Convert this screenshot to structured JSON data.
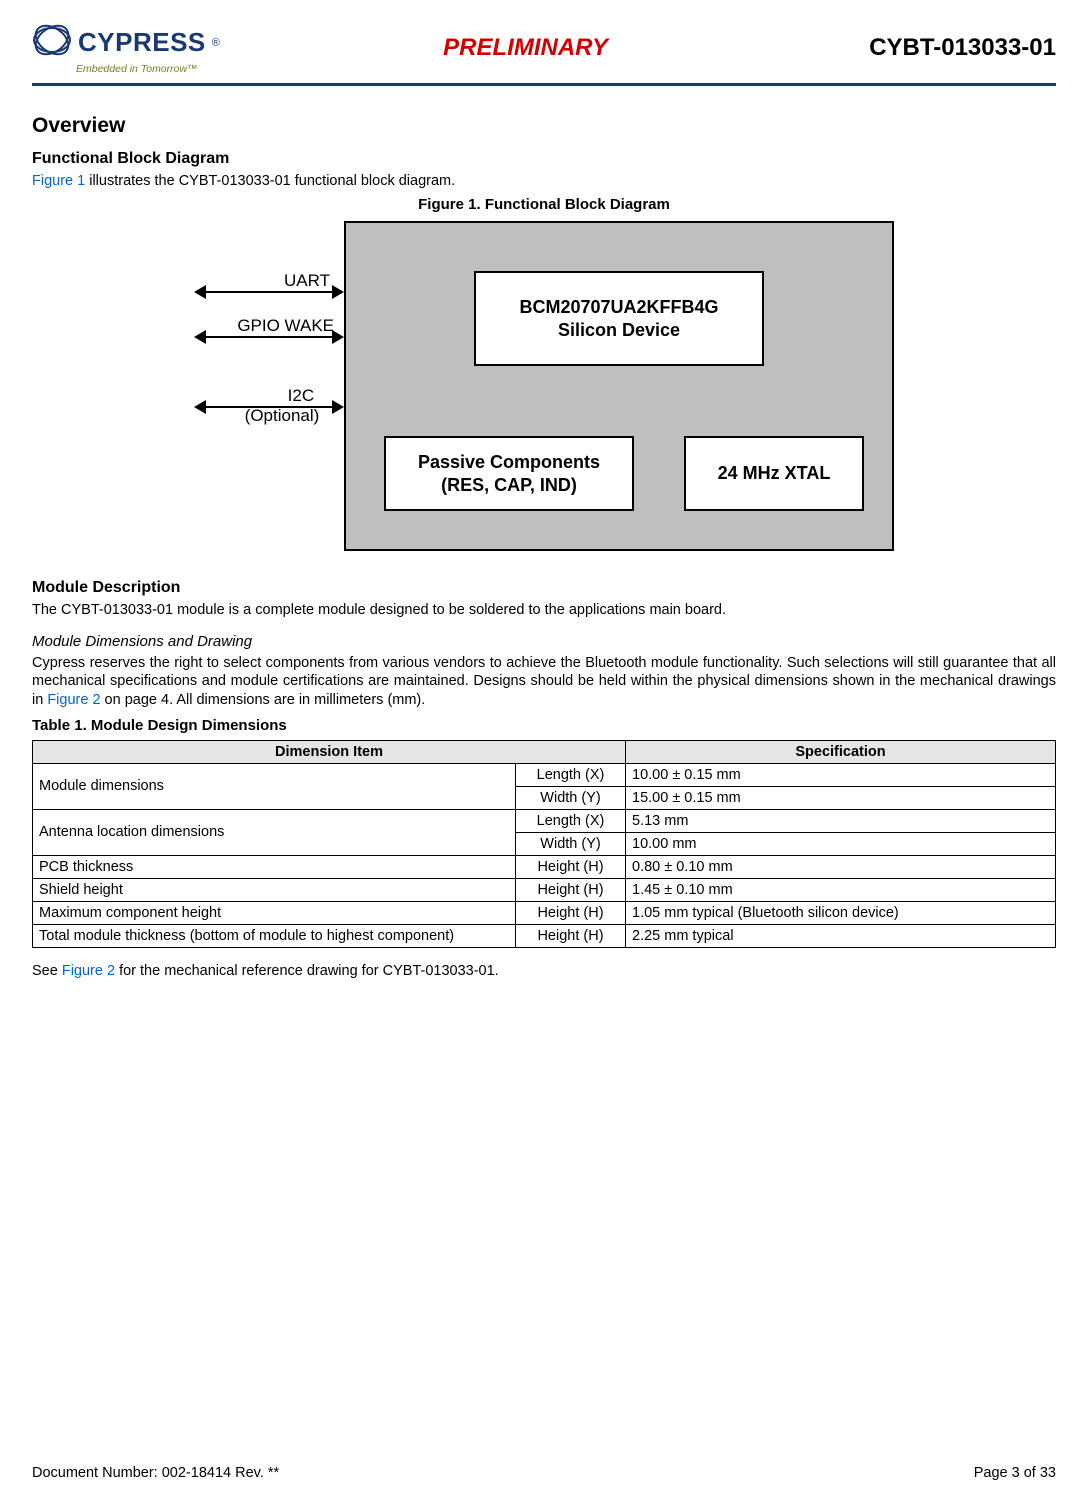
{
  "header": {
    "logo_brand": "CYPRESS",
    "logo_tagline": "Embedded in Tomorrow™",
    "preliminary": "PRELIMINARY",
    "part_number": "CYBT-013033-01"
  },
  "content": {
    "overview_heading": "Overview",
    "fbd_heading": "Functional Block Diagram",
    "fbd_intro_pre": "Figure 1",
    "fbd_intro_post": " illustrates the CYBT-013033-01 functional block diagram.",
    "fig1_caption": "Figure 1.  Functional Block Diagram",
    "diagram": {
      "silicon_line1": "BCM20707UA2KFFB4G",
      "silicon_line2": "Silicon Device",
      "passive_line1": "Passive Components",
      "passive_line2": "(RES, CAP, IND)",
      "xtal": "24 MHz XTAL",
      "io_uart": "UART",
      "io_gpio": "GPIO WAKE",
      "io_i2c_line1": "I2C",
      "io_i2c_line2": "(Optional)"
    },
    "module_desc_heading": "Module Description",
    "module_desc_text": "The CYBT-013033-01 module is a complete module designed to be soldered to the applications main board.",
    "dims_subheading": "Module Dimensions and Drawing",
    "dims_para_pre": "Cypress reserves the right to select components from various vendors to achieve the Bluetooth module functionality. Such selections will still guarantee that all mechanical specifications and module certifications are maintained. Designs should be held within the physical dimensions shown in the mechanical drawings in ",
    "dims_para_link": "Figure 2",
    "dims_para_post": " on page 4. All dimensions are in millimeters (mm).",
    "table_caption": "Table 1.  Module Design Dimensions",
    "see_fig2_pre": "See ",
    "see_fig2_link": "Figure 2",
    "see_fig2_post": " for the mechanical reference drawing for CYBT-013033-01."
  },
  "table": {
    "header_item": "Dimension Item",
    "header_spec": "Specification",
    "rows": [
      {
        "item": "Module dimensions",
        "sub": "Length (X)",
        "spec": "10.00 ± 0.15 mm",
        "rowspan": 2
      },
      {
        "item": "",
        "sub": "Width (Y)",
        "spec": "15.00 ± 0.15 mm"
      },
      {
        "item": "Antenna location dimensions",
        "sub": "Length (X)",
        "spec": "5.13 mm",
        "rowspan": 2
      },
      {
        "item": "",
        "sub": "Width (Y)",
        "spec": "10.00 mm"
      },
      {
        "item": "PCB thickness",
        "sub": "Height (H)",
        "spec": "0.80 ± 0.10 mm"
      },
      {
        "item": "Shield height",
        "sub": "Height (H)",
        "spec": "1.45 ± 0.10 mm"
      },
      {
        "item": "Maximum component height",
        "sub": "Height (H)",
        "spec": "1.05 mm typical (Bluetooth silicon device)"
      },
      {
        "item": "Total module thickness (bottom of module to highest component)",
        "sub": "Height (H)",
        "spec": "2.25 mm typical"
      }
    ]
  },
  "footer": {
    "doc_number": "Document Number: 002-18414 Rev. **",
    "page": "Page 3 of 33"
  },
  "colors": {
    "header_rule": "#193a6f",
    "logo_text": "#193a6f",
    "preliminary": "#d40000",
    "link": "#0066cc",
    "table_header_bg": "#e5e5e5",
    "diagram_fill": "#bfbfbf"
  }
}
